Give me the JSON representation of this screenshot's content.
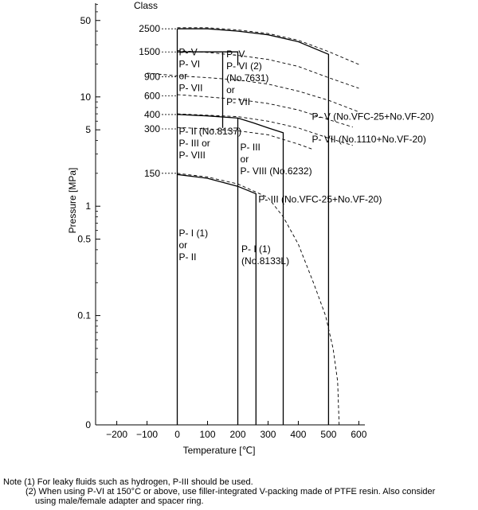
{
  "chart_data": {
    "type": "line",
    "xlabel": "Temperature [℃]",
    "ylabel": "Pressure [MPa]",
    "xscale": "linear",
    "yscale": "log",
    "xlim": [
      -270,
      620
    ],
    "ylim": [
      0.01,
      72
    ],
    "grid": false,
    "x_ticks": [
      -200,
      -100,
      0,
      100,
      200,
      300,
      400,
      500,
      600
    ],
    "y_ticks": [
      {
        "value": 50,
        "label": "50"
      },
      {
        "value": 10,
        "label": "10"
      },
      {
        "value": 5,
        "label": "5"
      },
      {
        "value": 1,
        "label": "1"
      },
      {
        "value": 0.5,
        "label": "0.5"
      },
      {
        "value": 0.1,
        "label": "0.1"
      },
      {
        "value": 0.01,
        "label": "0"
      }
    ],
    "class_header": "Class",
    "class_ticks": [
      {
        "label": "2500",
        "value": 42
      },
      {
        "label": "1500",
        "value": 25.8
      },
      {
        "label": "900",
        "value": 15.3
      },
      {
        "label": "600",
        "value": 10.2
      },
      {
        "label": "400",
        "value": 6.9
      },
      {
        "label": "300",
        "value": 5.1
      },
      {
        "label": "150",
        "value": 2.0
      }
    ],
    "series": [
      {
        "style": "solid",
        "points": [
          [
            0,
            42
          ],
          [
            100,
            42
          ],
          [
            200,
            40
          ],
          [
            300,
            37
          ],
          [
            400,
            32
          ],
          [
            500,
            24.5
          ],
          [
            500,
            0.01
          ]
        ]
      },
      {
        "style": "solid",
        "points": [
          [
            0,
            25.8
          ],
          [
            200,
            25.8
          ],
          [
            200,
            19.4
          ]
        ]
      },
      {
        "style": "solid",
        "points": [
          [
            150,
            25.8
          ],
          [
            150,
            5.2
          ]
        ]
      },
      {
        "style": "solid",
        "points": [
          [
            0,
            6.9
          ],
          [
            100,
            6.7
          ],
          [
            200,
            6.4
          ],
          [
            250,
            5.8
          ],
          [
            300,
            5.2
          ],
          [
            350,
            4.7
          ],
          [
            350,
            0.01
          ]
        ]
      },
      {
        "style": "solid",
        "points": [
          [
            0,
            1.95
          ],
          [
            100,
            1.8
          ],
          [
            200,
            1.52
          ],
          [
            260,
            1.3
          ],
          [
            260,
            0.01
          ]
        ]
      },
      {
        "style": "solid",
        "points": [
          [
            200,
            6.4
          ],
          [
            200,
            0.01
          ]
        ]
      },
      {
        "style": "solid",
        "points": [
          [
            0,
            42
          ],
          [
            0,
            0.01
          ]
        ]
      },
      {
        "style": "dashed",
        "points": [
          [
            0,
            43
          ],
          [
            100,
            43
          ],
          [
            200,
            41
          ],
          [
            300,
            38
          ],
          [
            400,
            33
          ],
          [
            500,
            26
          ],
          [
            600,
            19.8
          ]
        ]
      },
      {
        "style": "dashed",
        "points": [
          [
            0,
            26.5
          ],
          [
            100,
            25.5
          ],
          [
            200,
            24
          ],
          [
            300,
            22
          ],
          [
            400,
            19
          ],
          [
            500,
            15
          ],
          [
            600,
            12
          ]
        ]
      },
      {
        "style": "dashed",
        "points": [
          [
            -100,
            16.5
          ],
          [
            0,
            15.6
          ],
          [
            100,
            15.0
          ],
          [
            200,
            14.3
          ],
          [
            300,
            13.1
          ],
          [
            400,
            11.3
          ],
          [
            500,
            9.3
          ],
          [
            600,
            7.3
          ]
        ]
      },
      {
        "style": "dashed",
        "points": [
          [
            0,
            10.5
          ],
          [
            100,
            10.0
          ],
          [
            200,
            9.5
          ],
          [
            300,
            8.7
          ],
          [
            400,
            7.6
          ],
          [
            500,
            6.2
          ],
          [
            580,
            5.3
          ]
        ]
      },
      {
        "style": "dashed",
        "points": [
          [
            0,
            7.0
          ],
          [
            100,
            6.8
          ],
          [
            200,
            6.6
          ],
          [
            300,
            6.0
          ],
          [
            400,
            5.2
          ],
          [
            500,
            4.2
          ],
          [
            580,
            3.6
          ]
        ]
      },
      {
        "style": "dashed",
        "points": [
          [
            0,
            5.25
          ],
          [
            100,
            5.1
          ],
          [
            200,
            4.9
          ],
          [
            300,
            4.5
          ],
          [
            400,
            3.7
          ],
          [
            450,
            3.3
          ]
        ]
      },
      {
        "style": "dashed",
        "points": [
          [
            0,
            2.0
          ],
          [
            100,
            1.85
          ],
          [
            200,
            1.6
          ],
          [
            300,
            1.2
          ],
          [
            350,
            0.8
          ],
          [
            400,
            0.45
          ],
          [
            450,
            0.2
          ],
          [
            490,
            0.1
          ],
          [
            515,
            0.05
          ],
          [
            530,
            0.025
          ],
          [
            535,
            0.01
          ]
        ]
      }
    ],
    "region_labels": [
      {
        "x": 5,
        "y": 24,
        "lines": [
          "P- V",
          "P- VI",
          "or",
          "P- VII"
        ]
      },
      {
        "x": 162,
        "y": 23,
        "lines": [
          "P- V",
          "P- VI (2)",
          "(No.7631)",
          "or",
          "P- VII"
        ]
      },
      {
        "x": 5,
        "y": 4.55,
        "lines": [
          "P- II (No.8137)",
          "P- III  or",
          "P- VIII"
        ]
      },
      {
        "x": 208,
        "y": 3.25,
        "lines": [
          "P- III",
          "or",
          "P- VIII (No.6232)"
        ]
      },
      {
        "x": 268,
        "y": 1.08,
        "lines": [
          "P- III (No.VFC-25+No.VF-20)"
        ]
      },
      {
        "x": 5,
        "y": 0.53,
        "lines": [
          "P- I (1)",
          "or",
          "P- II"
        ]
      },
      {
        "x": 212,
        "y": 0.38,
        "lines": [
          "P- I (1)",
          "(No.8133L)"
        ]
      },
      {
        "x": 445,
        "y": 6.2,
        "lines": [
          "P- V (No.VFC-25+No.VF-20)"
        ]
      },
      {
        "x": 445,
        "y": 3.85,
        "lines": [
          "P- VII (No.1110+No.VF-20)"
        ]
      }
    ]
  },
  "notes": {
    "note1": "Note (1) For leaky fluids such as hydrogen, P-III should be used.",
    "note2": "(2) When using P-VI at 150°C or above, use filler-integrated V-packing made of PTFE resin. Also consider",
    "note3": "using male/female adapter and spacer ring."
  }
}
